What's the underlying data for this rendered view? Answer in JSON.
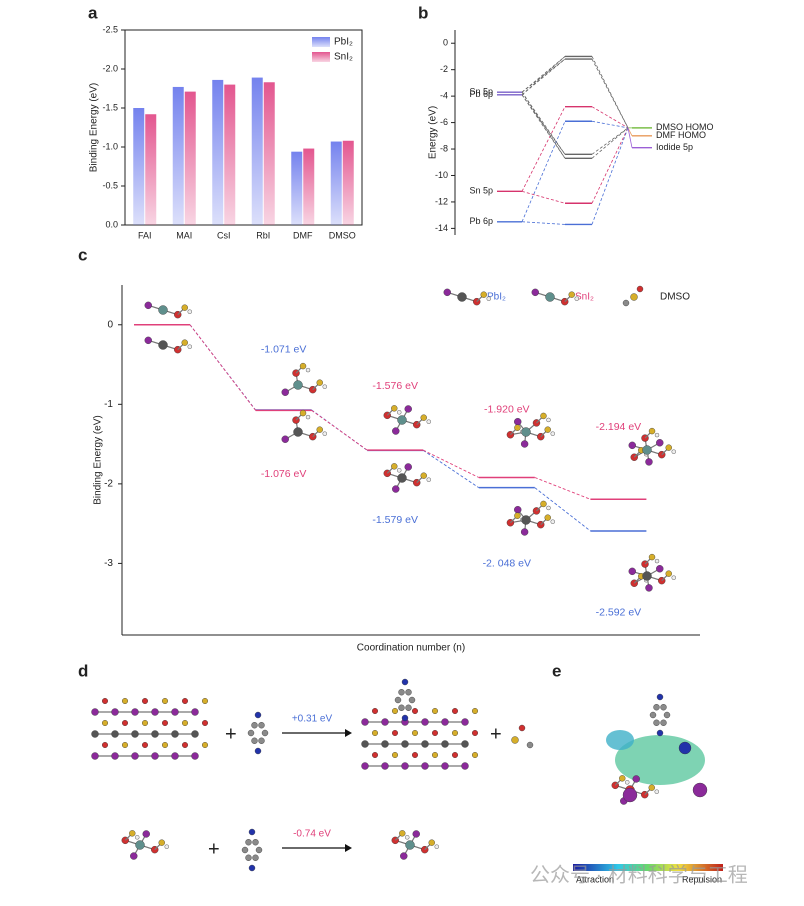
{
  "panel_labels": [
    "a",
    "b",
    "c",
    "d",
    "e"
  ],
  "chart_data": [
    {
      "type": "bar",
      "ylabel": "Binding Energy (eV)",
      "categories": [
        "FAI",
        "MAI",
        "CsI",
        "RbI",
        "DMF",
        "DMSO"
      ],
      "series": [
        {
          "name": "PbI₂",
          "color": "#7482ee",
          "values": [
            -1.5,
            -1.77,
            -1.86,
            -1.89,
            -0.94,
            -1.07
          ]
        },
        {
          "name": "SnI₂",
          "color": "#e3568f",
          "values": [
            -1.42,
            -1.71,
            -1.8,
            -1.83,
            -0.98,
            -1.08
          ]
        }
      ],
      "ylim": [
        0,
        -2.5
      ],
      "yticks": [
        {
          "value": -2.5,
          "label": "-2.5"
        },
        {
          "value": -2,
          "label": "-2.0"
        },
        {
          "value": -1.5,
          "label": "-1.5"
        },
        {
          "value": -1,
          "label": "-1.0"
        },
        {
          "value": -0.5,
          "label": "-0.5"
        },
        {
          "value": 0,
          "label": "0.0"
        }
      ],
      "legend": "upper right"
    },
    {
      "type": "energy-diagram",
      "ylabel": "Energy (eV)",
      "ylim": [
        1,
        -14.5
      ],
      "yticks": [
        0,
        -2,
        -4,
        -6,
        -8,
        -10,
        -12,
        -14
      ],
      "left": [
        {
          "label": "Sn 5p",
          "value": -3.7,
          "color": "#7a60c8"
        },
        {
          "label": "Pb 6p",
          "value": -3.9,
          "color": "#7a60c8"
        },
        {
          "label": "Sn 5p",
          "value": -11.2,
          "color": "#d6336c"
        },
        {
          "label": "Pb 6p",
          "value": -13.5,
          "color": "#4a6fd6"
        }
      ],
      "middle": [
        {
          "value": -1.0,
          "color": "#666666"
        },
        {
          "value": -1.2,
          "color": "#666666"
        },
        {
          "value": -4.8,
          "color": "#d6336c"
        },
        {
          "value": -5.9,
          "color": "#4a6fd6"
        },
        {
          "value": -8.4,
          "color": "#666666"
        },
        {
          "value": -8.7,
          "color": "#666666"
        },
        {
          "value": -12.1,
          "color": "#d6336c"
        },
        {
          "value": -13.7,
          "color": "#4a6fd6"
        }
      ],
      "right": [
        {
          "label": "DMSO HOMO",
          "value": -6.4,
          "color": "#7cbf4a"
        },
        {
          "label": "DMF HOMO",
          "value": -7.0,
          "color": "#e89a5a"
        },
        {
          "label": "Iodide 5p",
          "value": -7.9,
          "color": "#9b5fd6"
        }
      ]
    },
    {
      "type": "level-line",
      "ylabel": "Binding Energy (eV)",
      "xlabel": "Coordination number (n)",
      "categories": [
        null,
        null,
        null,
        null,
        null
      ],
      "series": [
        {
          "name": "PbI₂",
          "color": "#4a6fd6",
          "values": [
            0,
            -1.071,
            -1.579,
            -2.048,
            -2.592
          ],
          "value_labels": [
            null,
            "-1.071 eV",
            "-1.579 eV",
            "-2. 048 eV",
            "-2.592 eV"
          ]
        },
        {
          "name": "SnI₂",
          "color": "#e0407a",
          "values": [
            0,
            -1.076,
            -1.576,
            -1.92,
            -2.194
          ],
          "value_labels": [
            null,
            "-1.076 eV",
            "-1.576 eV",
            "-1.920 eV",
            "-2.194 eV"
          ]
        }
      ],
      "molecule_legend": "DMSO",
      "ylim": [
        0.5,
        -3.9
      ],
      "yticks": [
        0,
        -1,
        -2,
        -3
      ]
    }
  ],
  "panel_d": {
    "plus": "+",
    "reactions": [
      "+0.31 eV",
      "-0.74 eV"
    ]
  },
  "panel_e": {
    "colorbar": [
      "Attraction",
      "Repulsion"
    ]
  },
  "watermark": "公众号 · 材料科学与工程"
}
